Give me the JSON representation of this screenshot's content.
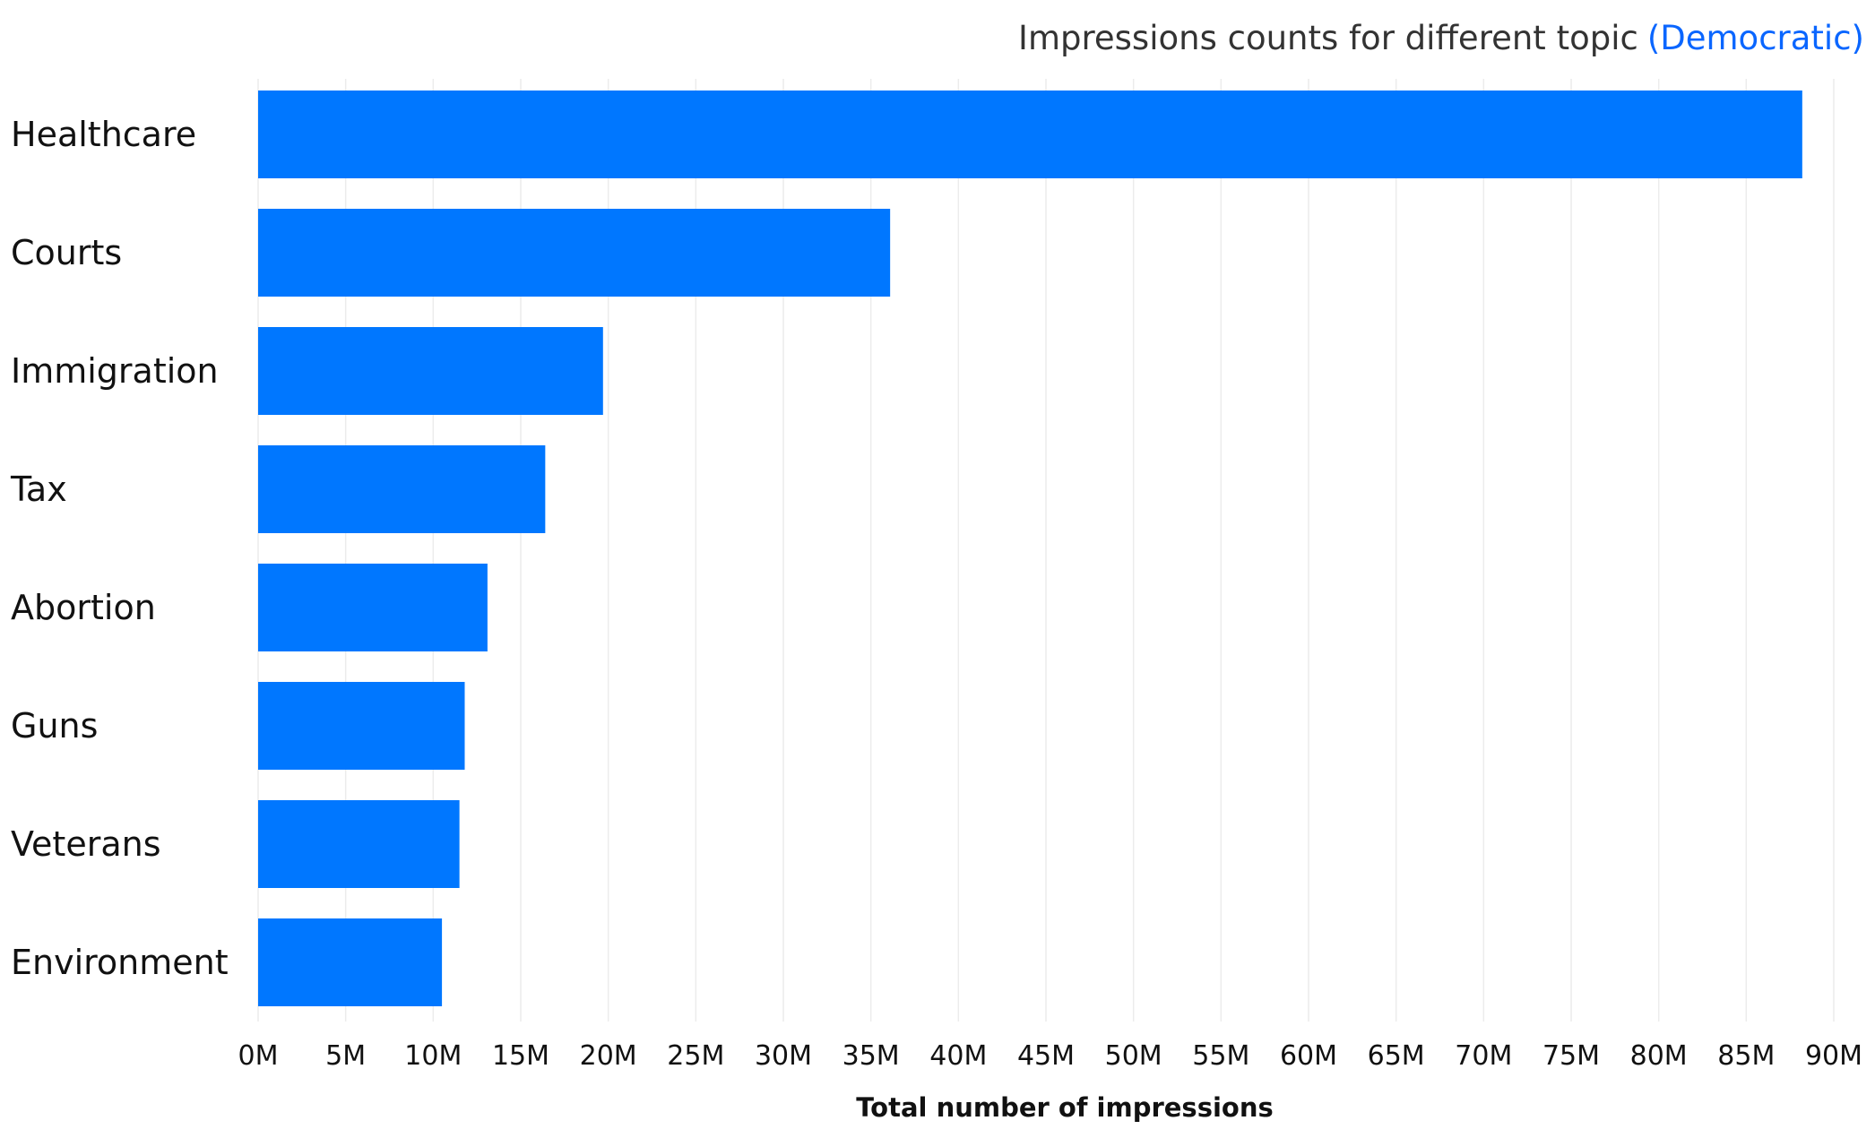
{
  "chart_data": {
    "type": "bar",
    "orientation": "horizontal",
    "title": "Impressions counts for different topic",
    "title_accent": "(Democratic)",
    "xlabel": "Total number of impressions",
    "ylabel": "",
    "categories": [
      "Healthcare",
      "Courts",
      "Immigration",
      "Tax",
      "Abortion",
      "Guns",
      "Veterans",
      "Environment"
    ],
    "values": [
      88200000,
      36100000,
      19700000,
      16400000,
      13100000,
      11800000,
      11500000,
      10500000
    ],
    "xlim": [
      0,
      90000000
    ],
    "ticks": [
      0,
      5000000,
      10000000,
      15000000,
      20000000,
      25000000,
      30000000,
      35000000,
      40000000,
      45000000,
      50000000,
      55000000,
      60000000,
      65000000,
      70000000,
      75000000,
      80000000,
      85000000,
      90000000
    ],
    "tick_labels": [
      "0M",
      "5M",
      "10M",
      "15M",
      "20M",
      "25M",
      "30M",
      "35M",
      "40M",
      "45M",
      "50M",
      "55M",
      "60M",
      "65M",
      "70M",
      "75M",
      "80M",
      "85M",
      "90M"
    ],
    "grid": true,
    "bar_color": "#0077ff",
    "accent_color": "#0a66ff"
  }
}
